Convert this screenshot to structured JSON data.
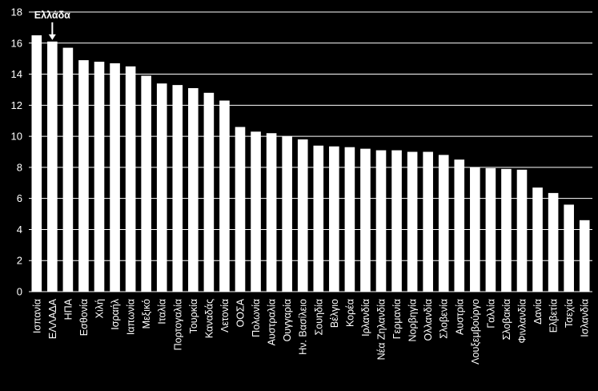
{
  "chart_data": {
    "type": "bar",
    "title": "",
    "xlabel": "",
    "ylabel": "",
    "ylim": [
      0,
      18
    ],
    "yticks": [
      0,
      2,
      4,
      6,
      8,
      10,
      12,
      14,
      16,
      18
    ],
    "grid": true,
    "legend": "none",
    "colors": {
      "background": "#000000",
      "bar": "#ffffff",
      "grid": "#ffffff",
      "text": "#ffffff"
    },
    "categories": [
      "Ισπανία",
      "ΕΛΛΑΔΑ",
      "ΗΠΑ",
      "Εσθονία",
      "Χιλή",
      "Ισραήλ",
      "Ιαπωνία",
      "Μεξικό",
      "Ιταλία",
      "Πορτογαλία",
      "Τουρκία",
      "Καναδάς",
      "Λετονία",
      "ΟΟΣΑ",
      "Πολωνία",
      "Αυστραλία",
      "Ουγγαρία",
      "Ην. Βασίλειο",
      "Σουηδία",
      "Βέλγιο",
      "Κορέα",
      "Ιρλανδία",
      "Νέα Ζηλανδία",
      "Γερμανία",
      "Νορβηγία",
      "Ολλανδία",
      "Σλοβενία",
      "Αυστρία",
      "Λουξεμβούργο",
      "Γαλλία",
      "Σλοβακία",
      "Φινλανδία",
      "Δανία",
      "Ελβετία",
      "Τσεχία",
      "Ισλανδία"
    ],
    "values": [
      16.5,
      16.1,
      15.7,
      14.9,
      14.8,
      14.7,
      14.5,
      13.9,
      13.4,
      13.3,
      13.1,
      12.8,
      12.3,
      10.6,
      10.3,
      10.2,
      10.0,
      9.8,
      9.4,
      9.35,
      9.3,
      9.2,
      9.1,
      9.1,
      9.0,
      9.0,
      8.8,
      8.5,
      8.0,
      7.95,
      7.9,
      7.85,
      6.7,
      6.35,
      5.6,
      4.6
    ],
    "annotation": {
      "text": "Ελλάδα",
      "category": "ΕΛΛΑΔΑ"
    }
  }
}
